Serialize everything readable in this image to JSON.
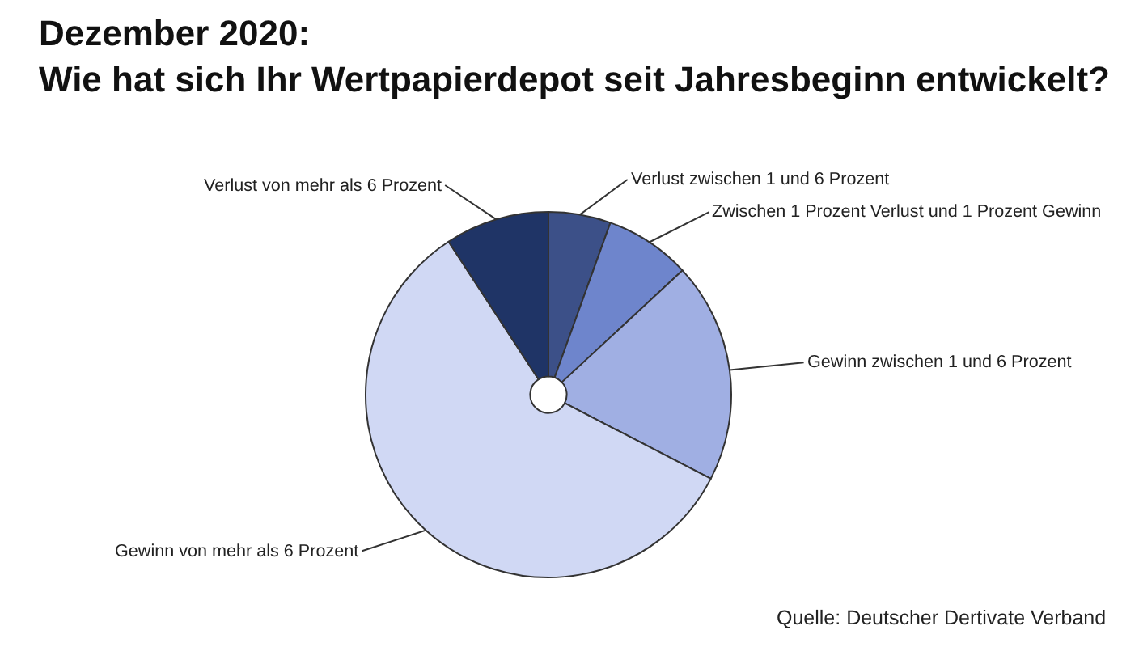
{
  "chart_data": {
    "type": "pie",
    "title": "Dezember 2020:\nWie hat sich Ihr Wertpapierdepot seit Jahresbeginn entwickelt?",
    "categories": [
      "Verlust zwischen 1 und 6 Prozent",
      "Zwischen 1 Prozent Verlust und 1 Prozent Gewinn",
      "Gewinn zwischen 1 und 6 Prozent",
      "Gewinn von mehr als 6 Prozent",
      "Verlust von mehr als 6 Prozent"
    ],
    "values": [
      5.5,
      7.6,
      19.5,
      58.2,
      9.2
    ],
    "colors": [
      "#3c5088",
      "#6e85cc",
      "#a0afe3",
      "#d0d8f4",
      "#1f3466"
    ],
    "annotations": [
      "Quelle: Deutscher Dertivate Verband"
    ],
    "legend": false
  }
}
